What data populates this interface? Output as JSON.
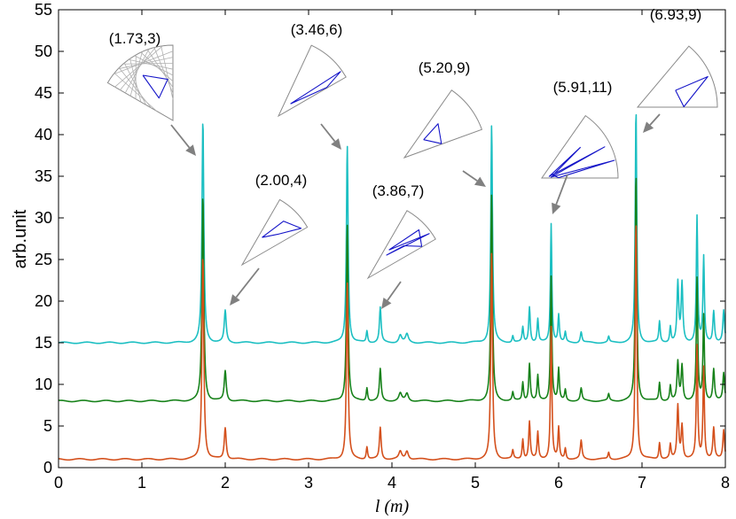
{
  "chart_data": {
    "type": "line",
    "xlabel": "l (m)",
    "ylabel": "arb.unit",
    "xlim": [
      0,
      8
    ],
    "ylim": [
      0,
      55
    ],
    "xticks": [
      0,
      1,
      2,
      3,
      4,
      5,
      6,
      7,
      8
    ],
    "yticks": [
      0,
      5,
      10,
      15,
      20,
      25,
      30,
      35,
      40,
      45,
      50,
      55
    ],
    "colors": {
      "cyan": "#1cbfc2",
      "green": "#17821a",
      "orange": "#d4501c",
      "orbit": "#1414c8",
      "grid": "#b0b0b0",
      "arrow": "#808080"
    },
    "series": [
      {
        "name": "cyan",
        "color": "#1cbfc2",
        "baseline": 15.0,
        "peaks": [
          [
            1.732,
            26.8,
            0.013
          ],
          [
            2.0,
            3.8,
            0.014
          ],
          [
            3.464,
            23.8,
            0.012
          ],
          [
            3.7,
            1.4,
            0.01
          ],
          [
            3.86,
            4.2,
            0.012
          ],
          [
            4.1,
            0.9,
            0.02
          ],
          [
            4.18,
            1.0,
            0.02
          ],
          [
            5.196,
            26.2,
            0.012
          ],
          [
            5.45,
            0.8,
            0.01
          ],
          [
            5.57,
            1.8,
            0.01
          ],
          [
            5.65,
            4.3,
            0.011
          ],
          [
            5.75,
            2.8,
            0.01
          ],
          [
            5.91,
            14.3,
            0.01
          ],
          [
            6.0,
            3.3,
            0.01
          ],
          [
            6.08,
            1.2,
            0.01
          ],
          [
            6.27,
            1.3,
            0.012
          ],
          [
            6.6,
            0.7,
            0.01
          ],
          [
            6.928,
            28.2,
            0.011
          ],
          [
            7.21,
            2.5,
            0.01
          ],
          [
            7.34,
            1.9,
            0.01
          ],
          [
            7.43,
            7.1,
            0.012
          ],
          [
            7.48,
            7.0,
            0.012
          ],
          [
            7.66,
            15.1,
            0.01
          ],
          [
            7.74,
            10.2,
            0.01
          ],
          [
            7.86,
            3.8,
            0.012
          ],
          [
            7.98,
            3.8,
            0.012
          ]
        ]
      },
      {
        "name": "green",
        "color": "#17821a",
        "baseline": 8.0,
        "peaks": [
          [
            1.732,
            24.8,
            0.013
          ],
          [
            2.0,
            3.6,
            0.014
          ],
          [
            3.464,
            21.3,
            0.012
          ],
          [
            3.7,
            1.6,
            0.01
          ],
          [
            3.86,
            3.8,
            0.012
          ],
          [
            4.1,
            0.9,
            0.02
          ],
          [
            4.18,
            0.9,
            0.02
          ],
          [
            5.196,
            24.8,
            0.012
          ],
          [
            5.45,
            1.0,
            0.01
          ],
          [
            5.57,
            2.2,
            0.01
          ],
          [
            5.65,
            4.5,
            0.011
          ],
          [
            5.75,
            3.0,
            0.01
          ],
          [
            5.91,
            15.0,
            0.01
          ],
          [
            6.0,
            3.8,
            0.01
          ],
          [
            6.08,
            1.3,
            0.01
          ],
          [
            6.27,
            1.5,
            0.012
          ],
          [
            6.6,
            0.8,
            0.01
          ],
          [
            6.928,
            27.6,
            0.011
          ],
          [
            7.21,
            2.2,
            0.01
          ],
          [
            7.34,
            1.8,
            0.01
          ],
          [
            7.43,
            4.6,
            0.012
          ],
          [
            7.48,
            4.2,
            0.012
          ],
          [
            7.66,
            14.6,
            0.01
          ],
          [
            7.74,
            10.2,
            0.01
          ],
          [
            7.86,
            3.8,
            0.012
          ],
          [
            7.98,
            3.3,
            0.012
          ]
        ]
      },
      {
        "name": "orange",
        "color": "#d4501c",
        "baseline": 1.0,
        "peaks": [
          [
            1.732,
            24.6,
            0.013
          ],
          [
            2.0,
            3.8,
            0.014
          ],
          [
            3.464,
            21.3,
            0.012
          ],
          [
            3.7,
            1.5,
            0.01
          ],
          [
            3.86,
            3.8,
            0.012
          ],
          [
            4.1,
            0.9,
            0.02
          ],
          [
            4.18,
            1.0,
            0.02
          ],
          [
            5.196,
            24.8,
            0.012
          ],
          [
            5.45,
            1.0,
            0.01
          ],
          [
            5.57,
            2.4,
            0.01
          ],
          [
            5.65,
            4.5,
            0.011
          ],
          [
            5.75,
            3.2,
            0.01
          ],
          [
            5.91,
            15.9,
            0.01
          ],
          [
            6.0,
            3.7,
            0.01
          ],
          [
            6.08,
            1.3,
            0.01
          ],
          [
            6.27,
            2.2,
            0.012
          ],
          [
            6.6,
            0.8,
            0.01
          ],
          [
            6.928,
            29.0,
            0.011
          ],
          [
            7.21,
            2.0,
            0.01
          ],
          [
            7.34,
            1.7,
            0.01
          ],
          [
            7.43,
            6.4,
            0.012
          ],
          [
            7.48,
            4.0,
            0.012
          ],
          [
            7.66,
            13.5,
            0.01
          ],
          [
            7.74,
            11.0,
            0.01
          ],
          [
            7.86,
            3.7,
            0.012
          ],
          [
            7.98,
            3.5,
            0.012
          ]
        ]
      }
    ],
    "annotations": [
      {
        "label": "(1.73,3)",
        "peak": [
          1.732,
          41.8
        ]
      },
      {
        "label": "(2.00,4)",
        "peak": [
          2.0,
          18.8
        ]
      },
      {
        "label": "(3.46,6)",
        "peak": [
          3.464,
          38.8
        ]
      },
      {
        "label": "(3.86,7)",
        "peak": [
          3.86,
          19.2
        ]
      },
      {
        "label": "(5.20,9)",
        "peak": [
          5.196,
          41.2
        ]
      },
      {
        "label": "(5.91,11)",
        "peak": [
          5.91,
          29.3
        ]
      },
      {
        "label": "(6.93,9)",
        "peak": [
          6.928,
          43.2
        ]
      }
    ]
  }
}
